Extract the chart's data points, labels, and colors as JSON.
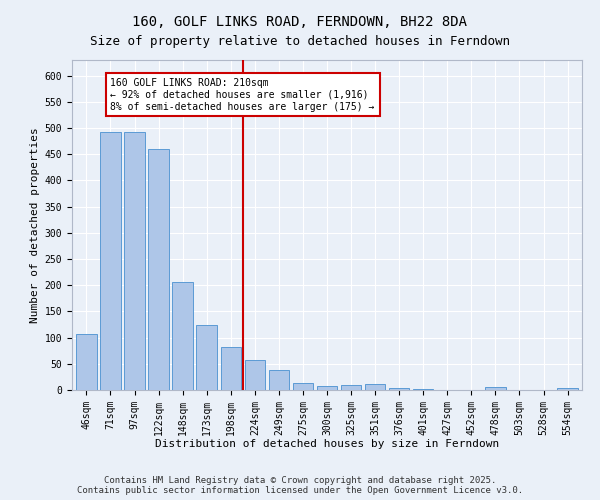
{
  "title": "160, GOLF LINKS ROAD, FERNDOWN, BH22 8DA",
  "subtitle": "Size of property relative to detached houses in Ferndown",
  "xlabel": "Distribution of detached houses by size in Ferndown",
  "ylabel": "Number of detached properties",
  "categories": [
    "46sqm",
    "71sqm",
    "97sqm",
    "122sqm",
    "148sqm",
    "173sqm",
    "198sqm",
    "224sqm",
    "249sqm",
    "275sqm",
    "300sqm",
    "325sqm",
    "351sqm",
    "376sqm",
    "401sqm",
    "427sqm",
    "452sqm",
    "478sqm",
    "503sqm",
    "528sqm",
    "554sqm"
  ],
  "values": [
    106,
    493,
    493,
    460,
    207,
    124,
    82,
    57,
    39,
    13,
    8,
    10,
    11,
    3,
    2,
    0,
    0,
    5,
    0,
    0,
    4
  ],
  "bar_color": "#aec6e8",
  "bar_edge_color": "#5b9bd5",
  "vline_x_index": 7,
  "vline_color": "#cc0000",
  "annotation_text": "160 GOLF LINKS ROAD: 210sqm\n← 92% of detached houses are smaller (1,916)\n8% of semi-detached houses are larger (175) →",
  "annotation_box_color": "#ffffff",
  "annotation_box_edge_color": "#cc0000",
  "ylim": [
    0,
    630
  ],
  "yticks": [
    0,
    50,
    100,
    150,
    200,
    250,
    300,
    350,
    400,
    450,
    500,
    550,
    600
  ],
  "background_color": "#eaf0f8",
  "grid_color": "#ffffff",
  "footer": "Contains HM Land Registry data © Crown copyright and database right 2025.\nContains public sector information licensed under the Open Government Licence v3.0.",
  "title_fontsize": 10,
  "subtitle_fontsize": 9,
  "axis_label_fontsize": 8,
  "tick_fontsize": 7,
  "footer_fontsize": 6.5,
  "annot_fontsize": 7
}
